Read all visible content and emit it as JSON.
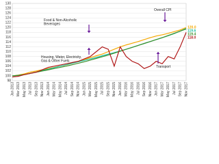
{
  "chart_data": {
    "type": "line",
    "categories": [
      "Jan 2013",
      "Mar 2013",
      "May 2013",
      "Jul 2013",
      "Sep 2013",
      "Nov 2013",
      "Jan 2014",
      "Mar 2014",
      "May 2014",
      "Jul 2014",
      "Sep 2014",
      "Nov 2014",
      "Jan 2015",
      "Mar 2015",
      "May 2015",
      "Jul 2015",
      "Sep 2015",
      "Nov 2015",
      "Jan 2016",
      "Mar 2016",
      "May 2016",
      "Jul 2016",
      "Sep 2016",
      "Nov 2016",
      "Jan 2017",
      "Mar 2017",
      "May 2017",
      "Jul 2017",
      "Sep 2017",
      "Nov 2017"
    ],
    "series": [
      {
        "name": "Food & Non-Alcoholic Beverages",
        "color": "#f5a800",
        "values": [
          100,
          100.3,
          100.8,
          101.5,
          102,
          102.5,
          103,
          103.5,
          104,
          104.5,
          105.2,
          106,
          106.8,
          107.5,
          108.3,
          109,
          110,
          111,
          112,
          112.8,
          113.5,
          114.2,
          115,
          115.8,
          116.5,
          117,
          117.6,
          118.3,
          119,
          120
        ],
        "value_labels": [
          null,
          null,
          null,
          null,
          null,
          null,
          null,
          null,
          null,
          null,
          null,
          null,
          null,
          null,
          null,
          null,
          null,
          null,
          null,
          null,
          null,
          null,
          null,
          null,
          null,
          null,
          null,
          null,
          null,
          "120.0"
        ]
      },
      {
        "name": "Housing, Water, Electricity, Gas & Other Fuels",
        "color": "#1fbfa0",
        "values": [
          100,
          100.2,
          100.5,
          101,
          101.6,
          102.2,
          102.8,
          103.4,
          104,
          104.6,
          105.2,
          105.8,
          106.4,
          107,
          107.6,
          108.3,
          109,
          109.6,
          110.3,
          111,
          111.8,
          112.6,
          113.4,
          114.2,
          115,
          115.8,
          116.6,
          117.5,
          118.5,
          119.6
        ],
        "value_labels": [
          null,
          null,
          null,
          null,
          null,
          null,
          null,
          null,
          null,
          null,
          null,
          null,
          null,
          null,
          null,
          null,
          null,
          null,
          null,
          null,
          null,
          null,
          null,
          null,
          null,
          null,
          null,
          null,
          null,
          "119.6"
        ]
      },
      {
        "name": "Overall CPI",
        "color": "#3a8f2a",
        "values": [
          100,
          100.2,
          100.5,
          101,
          101.5,
          102,
          102.5,
          103,
          103.5,
          104,
          104.6,
          105.2,
          105.8,
          106.5,
          107.2,
          107.9,
          108.6,
          109.4,
          110.2,
          111,
          111.8,
          112.6,
          113.4,
          114.2,
          115,
          115.8,
          116.7,
          117.6,
          118.5,
          119.4
        ],
        "value_labels": [
          null,
          null,
          null,
          null,
          null,
          null,
          null,
          null,
          null,
          null,
          null,
          null,
          null,
          null,
          null,
          null,
          null,
          null,
          null,
          null,
          null,
          null,
          null,
          null,
          null,
          null,
          null,
          null,
          null,
          "119.4"
        ]
      },
      {
        "name": "Transport",
        "color": "#b01818",
        "values": [
          99.5,
          99.8,
          100.5,
          101,
          101.5,
          102.5,
          103.5,
          104,
          104.5,
          105,
          105.5,
          106,
          107,
          108,
          110,
          112,
          111,
          104,
          112,
          108,
          106,
          105,
          103,
          104,
          106,
          105,
          108,
          107,
          112,
          118
        ],
        "value_labels": [
          null,
          null,
          null,
          null,
          null,
          null,
          null,
          null,
          null,
          null,
          null,
          null,
          null,
          null,
          null,
          null,
          null,
          null,
          null,
          null,
          null,
          null,
          null,
          null,
          null,
          null,
          null,
          null,
          null,
          "118.0"
        ]
      }
    ],
    "ylim": [
      98,
      130
    ],
    "yticks": [
      98,
      100,
      102,
      104,
      106,
      108,
      110,
      112,
      114,
      116,
      118,
      120,
      122,
      124,
      126,
      128,
      130
    ],
    "grid": true
  }
}
